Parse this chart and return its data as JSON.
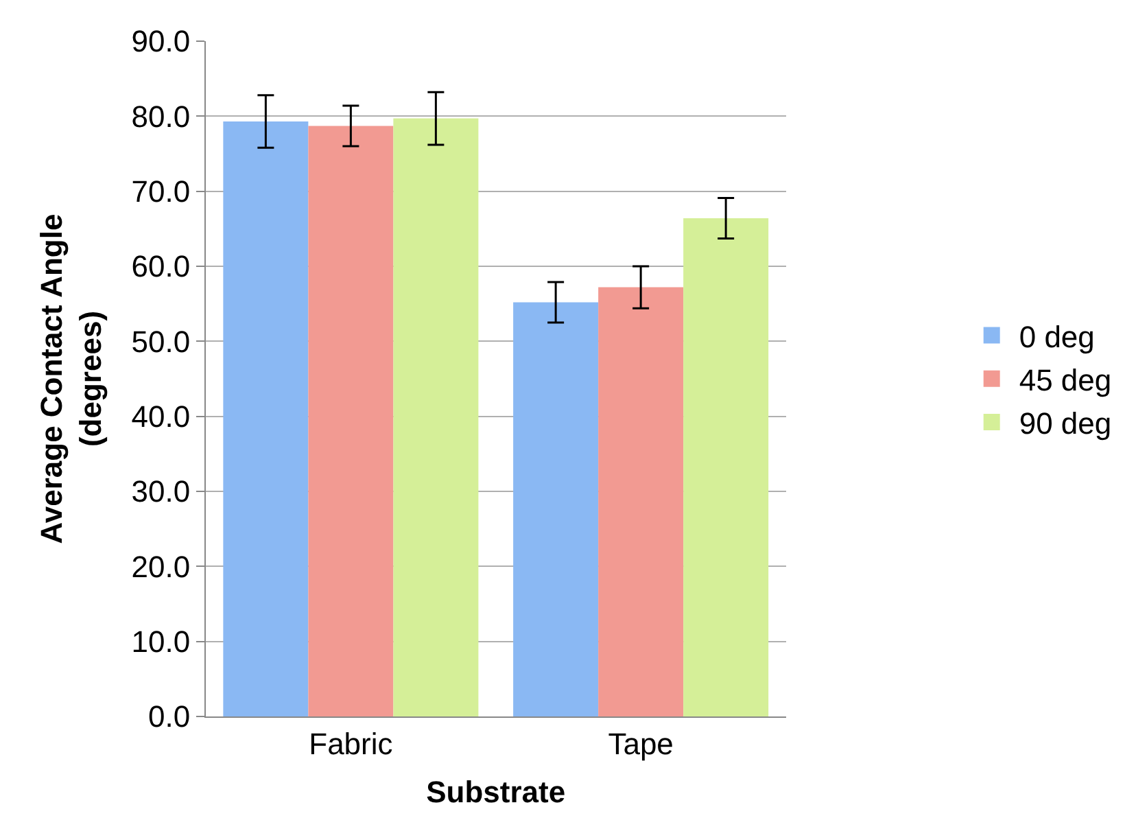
{
  "chart_data": {
    "type": "bar",
    "xlabel": "Substrate",
    "ylabel": "Average Contact Angle\n(degrees)",
    "categories": [
      "Fabric",
      "Tape"
    ],
    "series": [
      {
        "name": "0 deg",
        "color": "#8ab8f3",
        "values": [
          79.3,
          55.2
        ],
        "errors": [
          3.5,
          2.7
        ]
      },
      {
        "name": "45 deg",
        "color": "#f29a92",
        "values": [
          78.7,
          57.2
        ],
        "errors": [
          2.7,
          2.8
        ]
      },
      {
        "name": "90 deg",
        "color": "#d5ef98",
        "values": [
          79.7,
          66.4
        ],
        "errors": [
          3.5,
          2.7
        ]
      }
    ],
    "ylim": [
      0,
      90
    ],
    "yticks": [
      {
        "value": 0,
        "label": "0.0"
      },
      {
        "value": 10,
        "label": "10.0"
      },
      {
        "value": 20,
        "label": "20.0"
      },
      {
        "value": 30,
        "label": "30.0"
      },
      {
        "value": 40,
        "label": "40.0"
      },
      {
        "value": 50,
        "label": "50.0"
      },
      {
        "value": 60,
        "label": "60.0"
      },
      {
        "value": 70,
        "label": "70.0"
      },
      {
        "value": 80,
        "label": "80.0"
      },
      {
        "value": 90,
        "label": "90.0"
      }
    ],
    "grid": "y",
    "legend": "right"
  }
}
